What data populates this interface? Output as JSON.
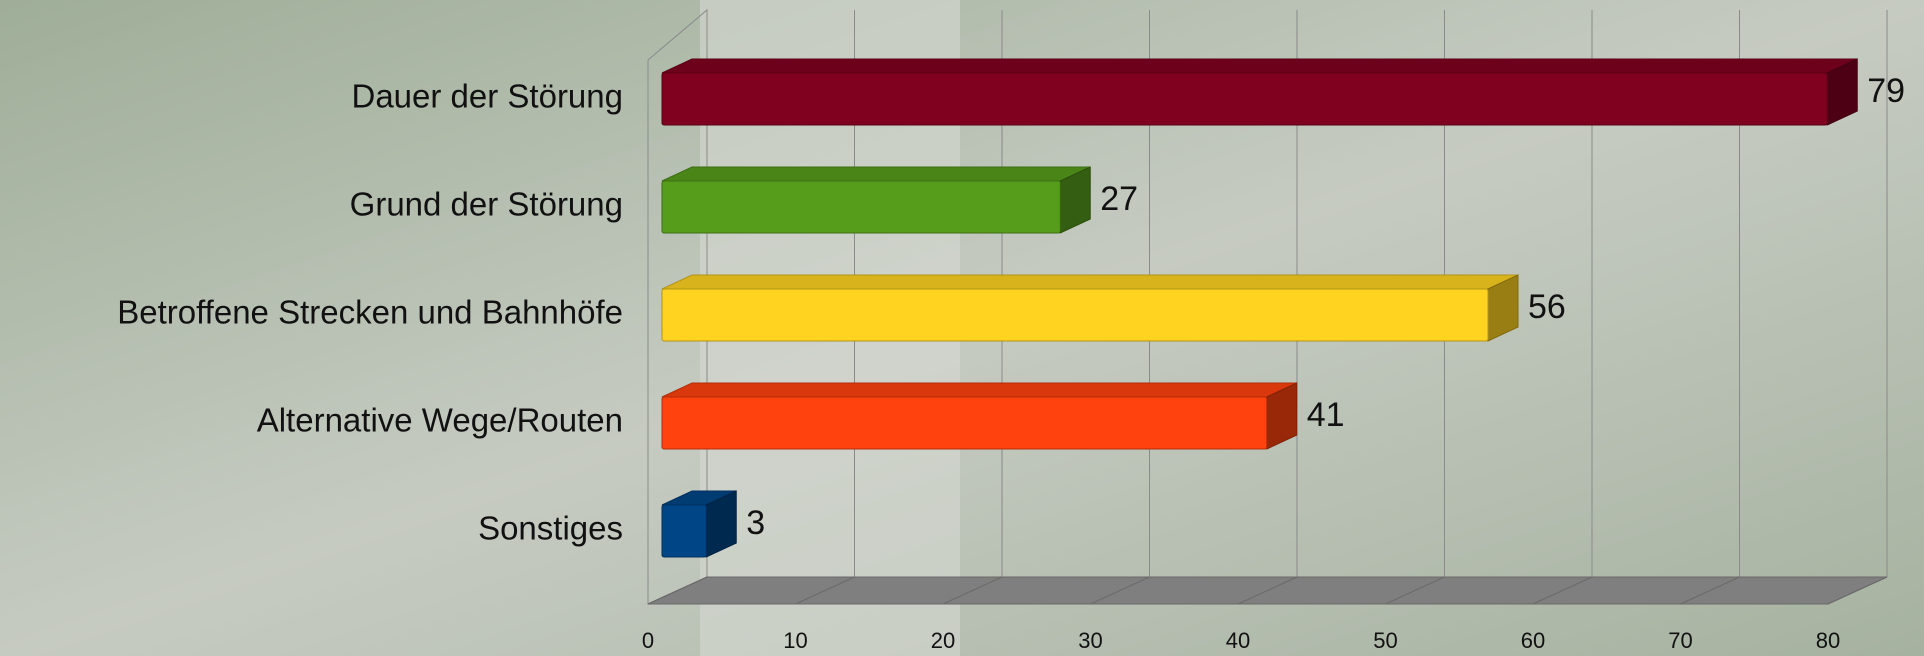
{
  "chart_data": {
    "type": "bar",
    "orientation": "horizontal",
    "categories": [
      "Dauer der Störung",
      "Grund der Störung",
      "Betroffene Strecken und Bahnhöfe",
      "Alternative Wege/Routen",
      "Sonstiges"
    ],
    "values": [
      79,
      27,
      56,
      41,
      3
    ],
    "colors": [
      "#800020",
      "#579d1c",
      "#ffd320",
      "#ff420e",
      "#004586"
    ],
    "xlim": [
      0,
      80
    ],
    "xticks": [
      0,
      10,
      20,
      30,
      40,
      50,
      60,
      70,
      80
    ],
    "grid": true
  }
}
